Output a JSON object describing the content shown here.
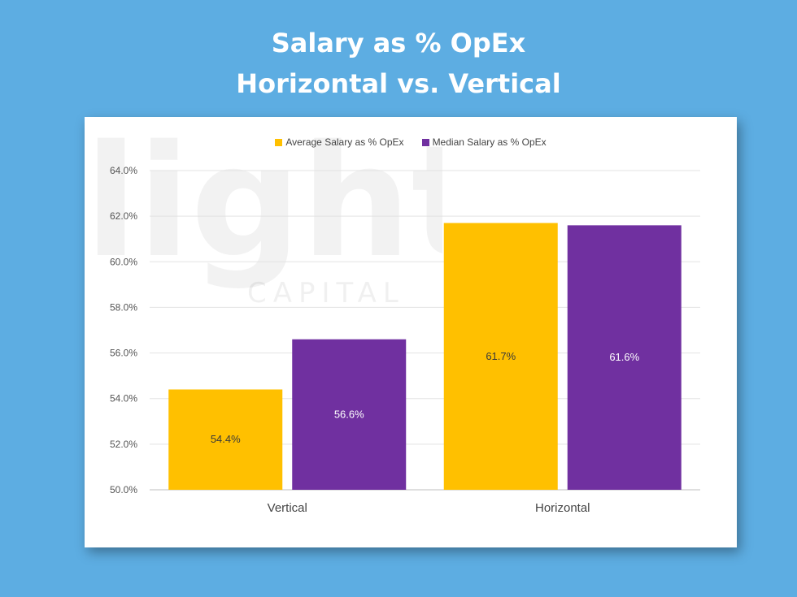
{
  "header": {
    "title_line1": "Salary as % OpEx",
    "title_line2": "Horizontal vs. Vertical"
  },
  "colors": {
    "background": "#5dade2",
    "average": "#ffc000",
    "median": "#7030a0"
  },
  "watermark": {
    "brand": "lighter",
    "sub": "CAPITAL"
  },
  "chart_data": {
    "type": "bar",
    "categories": [
      "Vertical",
      "Horizontal"
    ],
    "series": [
      {
        "name": "Average Salary as % OpEx",
        "values": [
          54.4,
          61.7
        ],
        "labels": [
          "54.4%",
          "61.7%"
        ]
      },
      {
        "name": "Median Salary as % OpEx",
        "values": [
          56.6,
          61.6
        ],
        "labels": [
          "56.6%",
          "61.6%"
        ]
      }
    ],
    "ylim": [
      50,
      64
    ],
    "yticks": [
      "50.0%",
      "52.0%",
      "54.0%",
      "56.0%",
      "58.0%",
      "60.0%",
      "62.0%",
      "64.0%"
    ],
    "legend_position": "top",
    "grid": true
  }
}
